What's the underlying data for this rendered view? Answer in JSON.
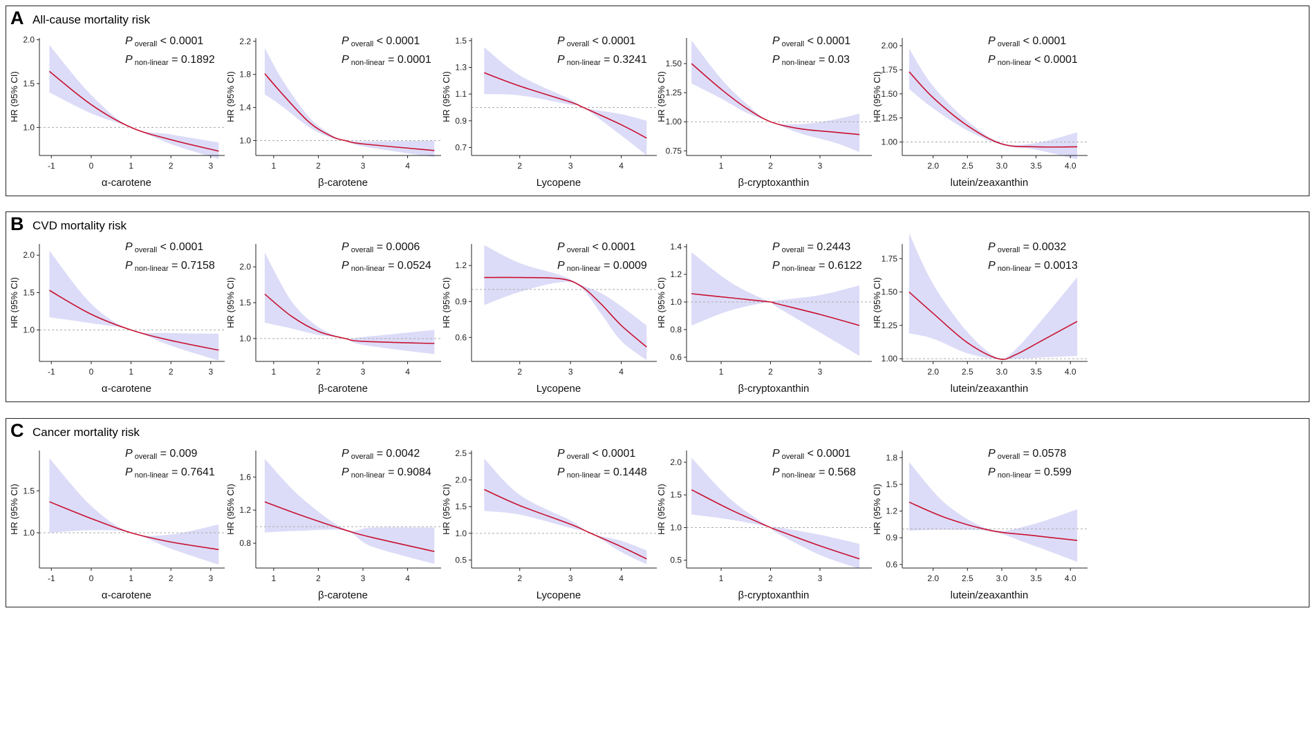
{
  "figure": {
    "colors": {
      "line": "#c8102e",
      "band": "#dcdcf8",
      "reference": "#aaaaaa",
      "axis": "#222222"
    },
    "hr_axis_label": "HR (95% CI)",
    "p_overall_label": "overall",
    "p_nonlinear_label": "non-linear",
    "p_symbol": "P"
  },
  "panels": [
    {
      "letter": "A",
      "title": "All-cause mortality risk"
    },
    {
      "letter": "B",
      "title": "CVD mortality risk"
    },
    {
      "letter": "C",
      "title": "Cancer mortality risk"
    }
  ],
  "chart_data": [
    {
      "type": "line",
      "panel": "A",
      "xlabel": "α-carotene",
      "ylabel": "HR (95% CI)",
      "p_overall": "< 0.0001",
      "p_nonlinear": "= 0.1892",
      "xlim": [
        -1.3,
        3.35
      ],
      "xticks": [
        -1,
        0,
        1,
        2,
        3
      ],
      "ylim": [
        0.68,
        2.02
      ],
      "yticks": [
        1.0,
        1.5,
        2.0
      ],
      "ytick_labels": [
        "1.0",
        "1.5",
        "2.0"
      ],
      "x": [
        -1.05,
        0.0,
        1.0,
        2.0,
        3.2
      ],
      "hr": [
        1.64,
        1.26,
        1.0,
        0.86,
        0.73
      ],
      "lower": [
        1.4,
        1.16,
        1.0,
        0.81,
        0.64
      ],
      "upper": [
        1.94,
        1.37,
        1.0,
        0.92,
        0.83
      ]
    },
    {
      "type": "line",
      "panel": "A",
      "xlabel": "β-carotene",
      "ylabel": "HR (95% CI)",
      "p_overall": "< 0.0001",
      "p_nonlinear": "= 0.0001",
      "xlim": [
        0.6,
        4.75
      ],
      "xticks": [
        1,
        2,
        3,
        4
      ],
      "ylim": [
        0.82,
        2.24
      ],
      "yticks": [
        1.0,
        1.4,
        1.8,
        2.2
      ],
      "ytick_labels": [
        "1.0",
        "1.4",
        "1.8",
        "2.2"
      ],
      "x": [
        0.8,
        1.2,
        1.8,
        2.3,
        2.6,
        3.0,
        4.6
      ],
      "hr": [
        1.81,
        1.56,
        1.22,
        1.05,
        1.0,
        0.96,
        0.88
      ],
      "lower": [
        1.56,
        1.41,
        1.16,
        1.03,
        1.0,
        0.93,
        0.8
      ],
      "upper": [
        2.12,
        1.73,
        1.28,
        1.07,
        1.0,
        0.99,
        1.0
      ]
    },
    {
      "type": "line",
      "panel": "A",
      "xlabel": "Lycopene",
      "ylabel": "HR (95% CI)",
      "p_overall": "< 0.0001",
      "p_nonlinear": "= 0.3241",
      "xlim": [
        1.05,
        4.7
      ],
      "xticks": [
        2,
        3,
        4
      ],
      "ylim": [
        0.64,
        1.52
      ],
      "yticks": [
        0.7,
        0.9,
        1.1,
        1.3,
        1.5
      ],
      "ytick_labels": [
        "0.7",
        "0.9",
        "1.1",
        "1.3",
        "1.5"
      ],
      "x": [
        1.3,
        2.0,
        3.0,
        3.25,
        4.0,
        4.5
      ],
      "hr": [
        1.26,
        1.16,
        1.04,
        1.0,
        0.87,
        0.77
      ],
      "lower": [
        1.1,
        1.09,
        1.02,
        1.0,
        0.79,
        0.64
      ],
      "upper": [
        1.45,
        1.24,
        1.06,
        1.0,
        0.95,
        0.9
      ]
    },
    {
      "type": "line",
      "panel": "A",
      "xlabel": "β-cryptoxanthin",
      "ylabel": "HR (95% CI)",
      "p_overall": "< 0.0001",
      "p_nonlinear": "= 0.03",
      "xlim": [
        0.3,
        4.05
      ],
      "xticks": [
        1,
        2,
        3
      ],
      "ylim": [
        0.71,
        1.72
      ],
      "yticks": [
        0.75,
        1.0,
        1.25,
        1.5
      ],
      "ytick_labels": [
        "0.75",
        "1.00",
        "1.25",
        "1.50"
      ],
      "x": [
        0.4,
        1.0,
        1.5,
        2.0,
        2.6,
        3.3,
        3.8
      ],
      "hr": [
        1.5,
        1.28,
        1.12,
        1.0,
        0.94,
        0.91,
        0.89
      ],
      "lower": [
        1.33,
        1.2,
        1.08,
        1.0,
        0.9,
        0.82,
        0.74
      ],
      "upper": [
        1.7,
        1.37,
        1.16,
        1.0,
        0.98,
        1.02,
        1.07
      ]
    },
    {
      "type": "line",
      "panel": "A",
      "xlabel": "lutein/zeaxanthin",
      "ylabel": "HR (95% CI)",
      "p_overall": "< 0.0001",
      "p_nonlinear": "< 0.0001",
      "xlim": [
        1.55,
        4.25
      ],
      "xticks": [
        2.0,
        2.5,
        3.0,
        3.5,
        4.0
      ],
      "xtick_labels": [
        "2.0",
        "2.5",
        "3.0",
        "3.5",
        "4.0"
      ],
      "ylim": [
        0.86,
        2.08
      ],
      "yticks": [
        1.0,
        1.25,
        1.5,
        1.75,
        2.0
      ],
      "ytick_labels": [
        "1.00",
        "1.25",
        "1.50",
        "1.75",
        "2.00"
      ],
      "x": [
        1.65,
        2.0,
        2.5,
        3.0,
        3.5,
        4.1
      ],
      "hr": [
        1.73,
        1.46,
        1.17,
        0.98,
        0.95,
        0.95
      ],
      "lower": [
        1.55,
        1.35,
        1.12,
        0.97,
        0.92,
        0.82
      ],
      "upper": [
        1.97,
        1.58,
        1.22,
        0.99,
        0.99,
        1.1
      ]
    },
    {
      "type": "line",
      "panel": "B",
      "xlabel": "α-carotene",
      "ylabel": "HR (95% CI)",
      "p_overall": "< 0.0001",
      "p_nonlinear": "= 0.7158",
      "xlim": [
        -1.3,
        3.35
      ],
      "xticks": [
        -1,
        0,
        1,
        2,
        3
      ],
      "ylim": [
        0.58,
        2.15
      ],
      "yticks": [
        1.0,
        1.5,
        2.0
      ],
      "ytick_labels": [
        "1.0",
        "1.5",
        "2.0"
      ],
      "x": [
        -1.05,
        0.0,
        1.0,
        2.0,
        3.2
      ],
      "hr": [
        1.53,
        1.21,
        1.0,
        0.86,
        0.73
      ],
      "lower": [
        1.17,
        1.09,
        1.0,
        0.79,
        0.59
      ],
      "upper": [
        2.06,
        1.35,
        1.0,
        0.96,
        0.95
      ]
    },
    {
      "type": "line",
      "panel": "B",
      "xlabel": "β-carotene",
      "ylabel": "HR (95% CI)",
      "p_overall": "= 0.0006",
      "p_nonlinear": "= 0.0524",
      "xlim": [
        0.6,
        4.75
      ],
      "xticks": [
        1,
        2,
        3,
        4
      ],
      "ylim": [
        0.68,
        2.32
      ],
      "yticks": [
        1.0,
        1.5,
        2.0
      ],
      "ytick_labels": [
        "1.0",
        "1.5",
        "2.0"
      ],
      "x": [
        0.8,
        1.4,
        2.0,
        2.6,
        3.0,
        4.6
      ],
      "hr": [
        1.62,
        1.31,
        1.1,
        1.0,
        0.96,
        0.93
      ],
      "lower": [
        1.22,
        1.14,
        1.05,
        1.0,
        0.91,
        0.78
      ],
      "upper": [
        2.2,
        1.52,
        1.16,
        1.0,
        1.02,
        1.12
      ]
    },
    {
      "type": "line",
      "panel": "B",
      "xlabel": "Lycopene",
      "ylabel": "HR (95% CI)",
      "p_overall": "< 0.0001",
      "p_nonlinear": "= 0.0009",
      "xlim": [
        1.05,
        4.7
      ],
      "xticks": [
        2,
        3,
        4
      ],
      "ylim": [
        0.4,
        1.38
      ],
      "yticks": [
        0.6,
        0.9,
        1.2
      ],
      "ytick_labels": [
        "0.6",
        "0.9",
        "1.2"
      ],
      "x": [
        1.3,
        2.0,
        2.8,
        3.2,
        3.6,
        4.0,
        4.5
      ],
      "hr": [
        1.1,
        1.1,
        1.09,
        1.03,
        0.88,
        0.7,
        0.52
      ],
      "lower": [
        0.87,
        0.98,
        1.06,
        1.02,
        0.8,
        0.57,
        0.41
      ],
      "upper": [
        1.37,
        1.22,
        1.12,
        1.04,
        0.97,
        0.86,
        0.7
      ]
    },
    {
      "type": "line",
      "panel": "B",
      "xlabel": "β-cryptoxanthin",
      "ylabel": "HR (95% CI)",
      "p_overall": "= 0.2443",
      "p_nonlinear": "= 0.6122",
      "xlim": [
        0.3,
        4.05
      ],
      "xticks": [
        1,
        2,
        3
      ],
      "ylim": [
        0.57,
        1.42
      ],
      "yticks": [
        0.6,
        0.8,
        1.0,
        1.2,
        1.4
      ],
      "ytick_labels": [
        "0.6",
        "0.8",
        "1.0",
        "1.2",
        "1.4"
      ],
      "x": [
        0.4,
        1.2,
        2.0,
        2.1,
        3.0,
        3.8
      ],
      "hr": [
        1.06,
        1.03,
        1.0,
        0.99,
        0.91,
        0.83
      ],
      "lower": [
        0.83,
        0.94,
        1.0,
        0.97,
        0.78,
        0.61
      ],
      "upper": [
        1.36,
        1.14,
        1.0,
        1.01,
        1.05,
        1.12
      ]
    },
    {
      "type": "line",
      "panel": "B",
      "xlabel": "lutein/zeaxanthin",
      "ylabel": "HR (95% CI)",
      "p_overall": "= 0.0032",
      "p_nonlinear": "= 0.0013",
      "xlim": [
        1.55,
        4.25
      ],
      "xticks": [
        2.0,
        2.5,
        3.0,
        3.5,
        4.0
      ],
      "xtick_labels": [
        "2.0",
        "2.5",
        "3.0",
        "3.5",
        "4.0"
      ],
      "ylim": [
        0.98,
        1.86
      ],
      "yticks": [
        1.0,
        1.25,
        1.5,
        1.75
      ],
      "ytick_labels": [
        "1.00",
        "1.25",
        "1.50",
        "1.75"
      ],
      "x": [
        1.65,
        2.0,
        2.5,
        2.95,
        3.2,
        3.6,
        4.1
      ],
      "hr": [
        1.5,
        1.34,
        1.12,
        1.0,
        1.03,
        1.14,
        1.28
      ],
      "lower": [
        1.19,
        1.15,
        1.04,
        0.995,
        1.0,
        1.01,
        1.02
      ],
      "upper": [
        1.94,
        1.56,
        1.2,
        1.005,
        1.07,
        1.3,
        1.61
      ]
    },
    {
      "type": "line",
      "panel": "C",
      "xlabel": "α-carotene",
      "ylabel": "HR (95% CI)",
      "p_overall": "= 0.009",
      "p_nonlinear": "= 0.7641",
      "xlim": [
        -1.3,
        3.35
      ],
      "xticks": [
        -1,
        0,
        1,
        2,
        3
      ],
      "ylim": [
        0.58,
        1.98
      ],
      "yticks": [
        1.0,
        1.5
      ],
      "ytick_labels": [
        "1.0",
        "1.5"
      ],
      "x": [
        -1.05,
        0.0,
        1.0,
        2.0,
        3.2
      ],
      "hr": [
        1.37,
        1.17,
        1.0,
        0.89,
        0.8
      ],
      "lower": [
        1.0,
        1.03,
        1.0,
        0.81,
        0.62
      ],
      "upper": [
        1.89,
        1.32,
        1.0,
        0.98,
        1.1
      ]
    },
    {
      "type": "line",
      "panel": "C",
      "xlabel": "β-carotene",
      "ylabel": "HR (95% CI)",
      "p_overall": "= 0.0042",
      "p_nonlinear": "= 0.9084",
      "xlim": [
        0.6,
        4.75
      ],
      "xticks": [
        1,
        2,
        3,
        4
      ],
      "ylim": [
        0.5,
        1.92
      ],
      "yticks": [
        0.8,
        1.2,
        1.6
      ],
      "ytick_labels": [
        "0.8",
        "1.2",
        "1.6"
      ],
      "x": [
        0.8,
        1.6,
        2.6,
        3.2,
        4.6
      ],
      "hr": [
        1.3,
        1.14,
        0.96,
        0.87,
        0.7
      ],
      "lower": [
        0.93,
        0.95,
        0.95,
        0.76,
        0.55
      ],
      "upper": [
        1.82,
        1.36,
        0.97,
        0.99,
        0.99
      ]
    },
    {
      "type": "line",
      "panel": "C",
      "xlabel": "Lycopene",
      "ylabel": "HR (95% CI)",
      "p_overall": "< 0.0001",
      "p_nonlinear": "= 0.1448",
      "xlim": [
        1.05,
        4.7
      ],
      "xticks": [
        2,
        3,
        4
      ],
      "ylim": [
        0.35,
        2.55
      ],
      "yticks": [
        0.5,
        1.0,
        1.5,
        2.0,
        2.5
      ],
      "ytick_labels": [
        "0.5",
        "1.0",
        "1.5",
        "2.0",
        "2.5"
      ],
      "x": [
        1.3,
        2.0,
        3.0,
        3.4,
        4.0,
        4.5
      ],
      "hr": [
        1.82,
        1.52,
        1.17,
        1.0,
        0.75,
        0.52
      ],
      "lower": [
        1.42,
        1.35,
        1.1,
        1.0,
        0.65,
        0.42
      ],
      "upper": [
        2.4,
        1.72,
        1.24,
        1.0,
        0.86,
        0.68
      ]
    },
    {
      "type": "line",
      "panel": "C",
      "xlabel": "β-cryptoxanthin",
      "ylabel": "HR (95% CI)",
      "p_overall": "< 0.0001",
      "p_nonlinear": "= 0.568",
      "xlim": [
        0.3,
        4.05
      ],
      "xticks": [
        1,
        2,
        3
      ],
      "ylim": [
        0.38,
        2.18
      ],
      "yticks": [
        0.5,
        1.0,
        1.5,
        2.0
      ],
      "ytick_labels": [
        "0.5",
        "1.0",
        "1.5",
        "2.0"
      ],
      "x": [
        0.4,
        1.2,
        2.0,
        2.1,
        3.0,
        3.8
      ],
      "hr": [
        1.58,
        1.27,
        1.0,
        0.97,
        0.72,
        0.52
      ],
      "lower": [
        1.2,
        1.12,
        1.0,
        0.93,
        0.58,
        0.37
      ],
      "upper": [
        2.07,
        1.43,
        1.0,
        1.01,
        0.89,
        0.75
      ]
    },
    {
      "type": "line",
      "panel": "C",
      "xlabel": "lutein/zeaxanthin",
      "ylabel": "HR (95% CI)",
      "p_overall": "= 0.0578",
      "p_nonlinear": "= 0.599",
      "xlim": [
        1.55,
        4.25
      ],
      "xticks": [
        2.0,
        2.5,
        3.0,
        3.5,
        4.0
      ],
      "xtick_labels": [
        "2.0",
        "2.5",
        "3.0",
        "3.5",
        "4.0"
      ],
      "ylim": [
        0.56,
        1.88
      ],
      "yticks": [
        0.6,
        0.9,
        1.2,
        1.5,
        1.8
      ],
      "ytick_labels": [
        "0.6",
        "0.9",
        "1.2",
        "1.5",
        "1.8"
      ],
      "x": [
        1.65,
        2.2,
        2.85,
        3.4,
        4.1
      ],
      "hr": [
        1.3,
        1.12,
        0.98,
        0.93,
        0.87
      ],
      "lower": [
        0.98,
        0.99,
        0.97,
        0.83,
        0.63
      ],
      "upper": [
        1.75,
        1.27,
        0.99,
        1.04,
        1.22
      ]
    }
  ]
}
